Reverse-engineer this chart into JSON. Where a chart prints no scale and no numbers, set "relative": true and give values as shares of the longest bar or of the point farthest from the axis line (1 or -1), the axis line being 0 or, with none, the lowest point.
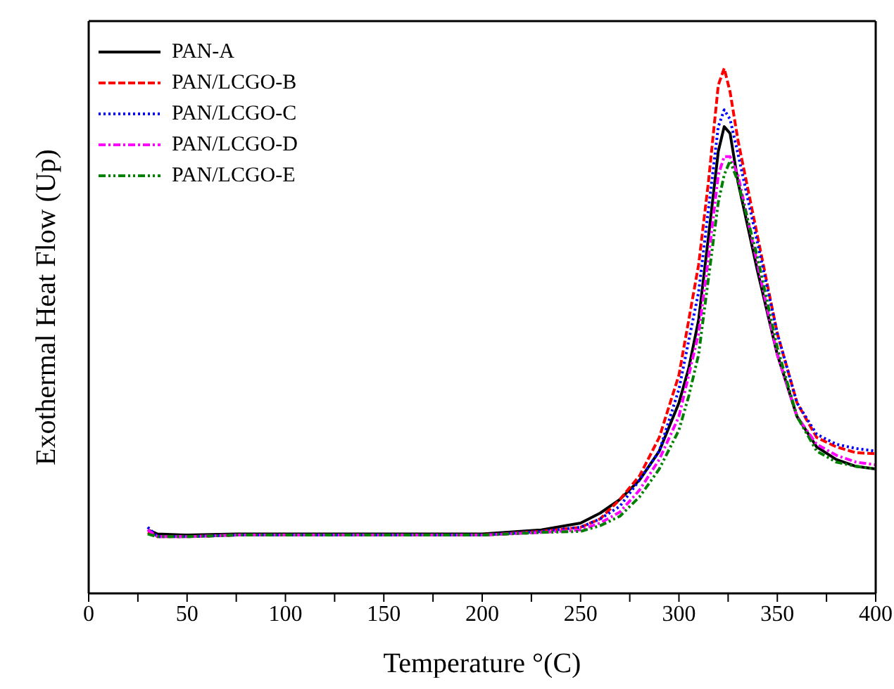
{
  "chart_data": {
    "type": "line",
    "relative": true,
    "xlabel": "Temperature °(C)",
    "ylabel": "Exothermal Heat Flow (Up)",
    "xlim": [
      0,
      400
    ],
    "xticks": [
      0,
      {
        "value": 25,
        "label": null
      },
      50,
      {
        "value": 75,
        "label": null
      },
      100,
      {
        "value": 125,
        "label": null
      },
      150,
      {
        "value": 175,
        "label": null
      },
      200,
      {
        "value": 225,
        "label": null
      },
      250,
      {
        "value": 275,
        "label": null
      },
      300,
      {
        "value": 325,
        "label": null
      },
      350,
      {
        "value": 375,
        "label": null
      },
      400
    ],
    "x": [
      30,
      35,
      50,
      75,
      100,
      150,
      200,
      230,
      250,
      260,
      270,
      280,
      290,
      300,
      305,
      310,
      315,
      320,
      323,
      326,
      330,
      340,
      350,
      360,
      370,
      380,
      390,
      400
    ],
    "legend": "top left",
    "grid": false,
    "marker": "none",
    "series": [
      {
        "name": "PAN-A",
        "color": "#000000",
        "line_style": "solid",
        "values": [
          0.121,
          0.113,
          0.111,
          0.113,
          0.113,
          0.113,
          0.113,
          0.121,
          0.134,
          0.153,
          0.179,
          0.216,
          0.271,
          0.363,
          0.429,
          0.521,
          0.679,
          0.842,
          0.889,
          0.876,
          0.784,
          0.613,
          0.455,
          0.337,
          0.279,
          0.255,
          0.242,
          0.237
        ]
      },
      {
        "name": "PAN/LCGO-B",
        "color": "#ff0000",
        "line_style": "dashed",
        "values": [
          0.116,
          0.108,
          0.108,
          0.111,
          0.111,
          0.111,
          0.111,
          0.118,
          0.126,
          0.142,
          0.179,
          0.224,
          0.297,
          0.416,
          0.521,
          0.626,
          0.784,
          0.968,
          1,
          0.955,
          0.863,
          0.679,
          0.495,
          0.363,
          0.297,
          0.279,
          0.268,
          0.266
        ]
      },
      {
        "name": "PAN/LCGO-C",
        "color": "#0000ff",
        "line_style": "dotted",
        "values": [
          0.126,
          0.108,
          0.108,
          0.111,
          0.111,
          0.111,
          0.111,
          0.118,
          0.126,
          0.142,
          0.166,
          0.216,
          0.271,
          0.389,
          0.482,
          0.574,
          0.732,
          0.889,
          0.921,
          0.903,
          0.837,
          0.666,
          0.495,
          0.363,
          0.303,
          0.284,
          0.276,
          0.271
        ]
      },
      {
        "name": "PAN/LCGO-D",
        "color": "#ff00ff",
        "line_style": "dashdot",
        "values": [
          0.121,
          0.108,
          0.108,
          0.111,
          0.111,
          0.111,
          0.111,
          0.116,
          0.121,
          0.134,
          0.155,
          0.197,
          0.255,
          0.337,
          0.416,
          0.495,
          0.639,
          0.797,
          0.832,
          0.832,
          0.797,
          0.626,
          0.455,
          0.337,
          0.284,
          0.263,
          0.25,
          0.245
        ]
      },
      {
        "name": "PAN/LCGO-E",
        "color": "#008000",
        "line_style": "dashdotdot",
        "values": [
          0.113,
          0.108,
          0.108,
          0.111,
          0.111,
          0.111,
          0.111,
          0.116,
          0.118,
          0.129,
          0.147,
          0.184,
          0.237,
          0.311,
          0.376,
          0.455,
          0.6,
          0.745,
          0.797,
          0.824,
          0.784,
          0.639,
          0.468,
          0.337,
          0.271,
          0.25,
          0.242,
          0.237
        ]
      }
    ]
  }
}
